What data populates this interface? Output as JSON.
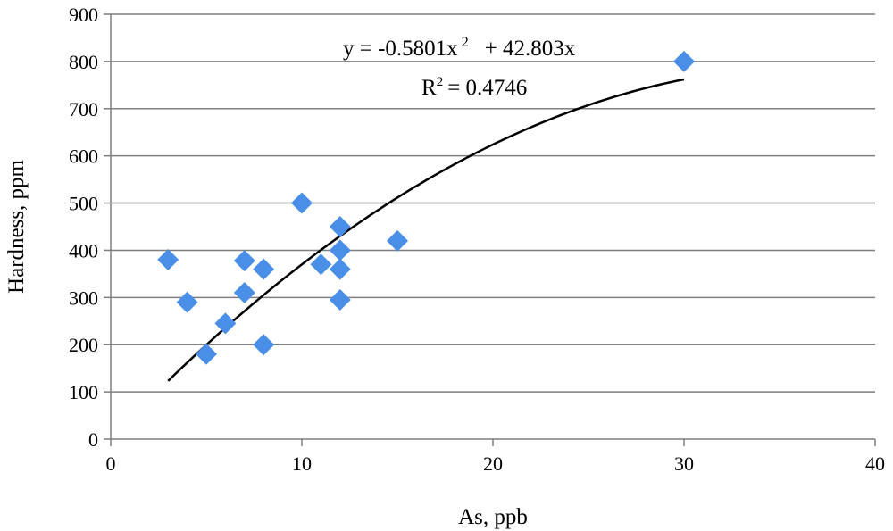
{
  "chart_data": {
    "type": "scatter",
    "xlabel": "As, ppb",
    "ylabel": "Hardness, ppm",
    "xlim": [
      0,
      40
    ],
    "ylim": [
      0,
      900
    ],
    "x_ticks": [
      "0",
      "10",
      "20",
      "30",
      "40"
    ],
    "y_ticks": [
      "0",
      "100",
      "200",
      "300",
      "400",
      "500",
      "600",
      "700",
      "800",
      "900"
    ],
    "grid": "horizontal",
    "marker_color": "#4a8fe7",
    "series": [
      {
        "points": [
          {
            "x": 3,
            "y": 380
          },
          {
            "x": 4,
            "y": 290
          },
          {
            "x": 5,
            "y": 180
          },
          {
            "x": 6,
            "y": 245
          },
          {
            "x": 7,
            "y": 378
          },
          {
            "x": 7,
            "y": 310
          },
          {
            "x": 8,
            "y": 360
          },
          {
            "x": 8,
            "y": 200
          },
          {
            "x": 10,
            "y": 500
          },
          {
            "x": 11,
            "y": 370
          },
          {
            "x": 12,
            "y": 450
          },
          {
            "x": 12,
            "y": 400
          },
          {
            "x": 12,
            "y": 360
          },
          {
            "x": 12,
            "y": 295
          },
          {
            "x": 15,
            "y": 420
          },
          {
            "x": 30,
            "y": 800
          }
        ]
      }
    ],
    "trendline": {
      "type": "polynomial",
      "a": -0.5801,
      "b": 42.803,
      "x_range": [
        3,
        30
      ],
      "color": "#000000"
    },
    "annotations": {
      "eq_part1": "y = -0.5801x",
      "eq_exp": "2",
      "eq_part2": "+ 42.803x",
      "r2_label": "R",
      "r2_exp": "2",
      "r2_value": "= 0.4746"
    }
  }
}
